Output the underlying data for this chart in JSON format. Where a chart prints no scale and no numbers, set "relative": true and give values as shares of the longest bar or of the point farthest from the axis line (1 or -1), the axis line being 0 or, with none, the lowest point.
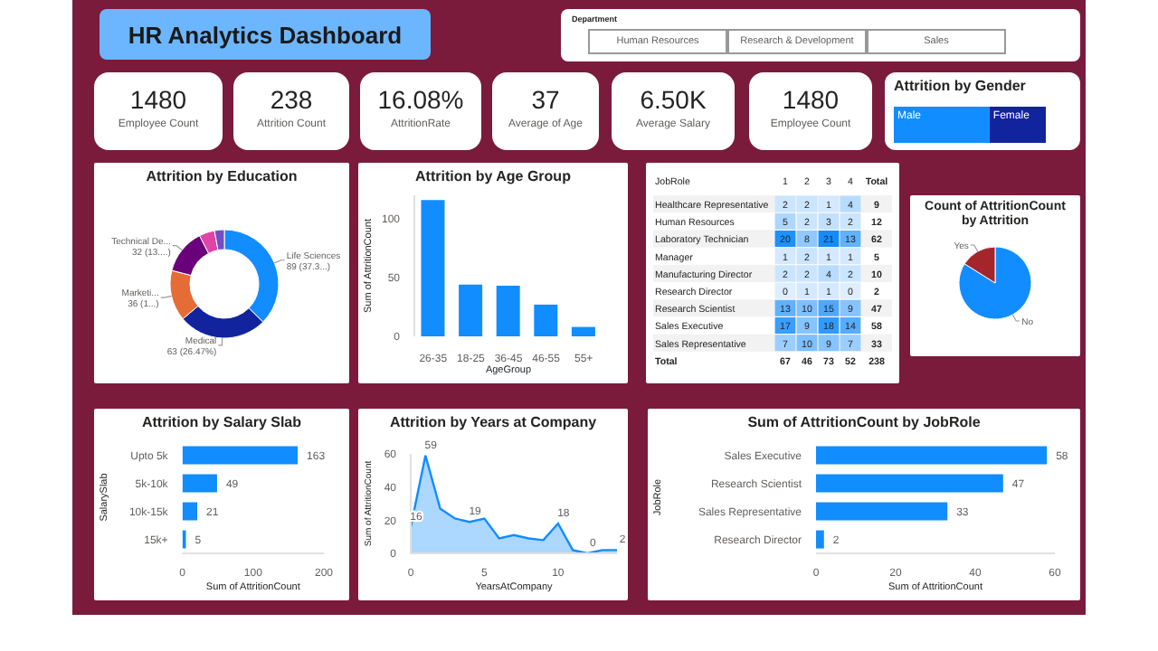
{
  "chart_data": [
    {
      "type": "other",
      "title": "HR Analytics Dashboard",
      "annotations": [
        "Department",
        "Human Resources",
        "Research & Development",
        "Sales",
        "1480",
        "Employee Count",
        "238",
        "Attrition Count",
        "16.08%",
        "AttritionRate",
        "37",
        "Average of Age",
        "6.50K",
        "Average Salary",
        "1480",
        "Employee Count"
      ]
    },
    {
      "type": "bar",
      "title": "Attrition by Gender",
      "orientation": "horizontal",
      "stacked": true,
      "relative": true,
      "categories": [
        null
      ],
      "series": [
        {
          "name": "Male",
          "color": "#118dff",
          "values": [
            0.63
          ]
        },
        {
          "name": "Female",
          "color": "#12239e",
          "values": [
            0.37
          ]
        }
      ]
    },
    {
      "type": "donut",
      "title": "Attrition by Education",
      "categories": [
        "Life Sciences",
        "Medical",
        "Marketi...",
        "Technical De...",
        null,
        null
      ],
      "values": [
        89,
        63,
        36,
        32,
        11,
        7
      ],
      "colors": [
        "#118dff",
        "#12239e",
        "#e66c37",
        "#6b007b",
        "#e044a7",
        "#744ec2"
      ],
      "value_labels": [
        "89 (37.3...)",
        "63 (26.47%)",
        "36 (1...)",
        "32 (13....)",
        null,
        null
      ]
    },
    {
      "type": "bar",
      "title": "Attrition by Age Group",
      "categories": [
        "26-35",
        "18-25",
        "36-45",
        "46-55",
        "55+"
      ],
      "values": [
        116,
        44,
        43,
        27,
        8
      ],
      "color": "#118dff",
      "ylim": [
        0,
        120
      ],
      "yticks": [
        0,
        50,
        100
      ],
      "xlabel": "AgeGroup",
      "ylabel": "Sum of AttritionCount"
    },
    {
      "type": "heatmap",
      "ylabel": "JobRole",
      "data_labels": true,
      "categories": [
        "1",
        "2",
        "3",
        "4",
        "Total"
      ],
      "y_categories": [
        "Healthcare Representative",
        "Human Resources",
        "Laboratory Technician",
        "Manager",
        "Manufacturing Director",
        "Research Director",
        "Research Scientist",
        "Sales Executive",
        "Sales Representative",
        "Total"
      ],
      "cells": [
        [
          2,
          2,
          1,
          4,
          9
        ],
        [
          5,
          2,
          3,
          2,
          12
        ],
        [
          20,
          8,
          21,
          13,
          62
        ],
        [
          1,
          2,
          1,
          1,
          5
        ],
        [
          2,
          2,
          4,
          2,
          10
        ],
        [
          0,
          1,
          1,
          0,
          2
        ],
        [
          13,
          10,
          15,
          9,
          47
        ],
        [
          17,
          9,
          18,
          14,
          58
        ],
        [
          7,
          10,
          9,
          7,
          33
        ],
        [
          67,
          46,
          73,
          52,
          238
        ]
      ]
    },
    {
      "type": "pie",
      "title": "Count of AttritionCount by Attrition",
      "categories": [
        "No",
        "Yes"
      ],
      "values": [
        83.92,
        16.08
      ],
      "colors": [
        "#118dff",
        "#a4262c"
      ]
    },
    {
      "type": "bar",
      "orientation": "horizontal",
      "title": "Attrition by Salary Slab",
      "categories": [
        "Upto 5k",
        "5k-10k",
        "10k-15k",
        "15k+"
      ],
      "values": [
        163,
        49,
        21,
        5
      ],
      "color": "#118dff",
      "xlim": [
        0,
        200
      ],
      "xticks": [
        0,
        100,
        200
      ],
      "xlabel": "Sum of AttritionCount",
      "ylabel": "SalarySlab",
      "data_labels": true
    },
    {
      "type": "area",
      "title": "Attrition by Years at Company",
      "x": [
        0,
        1,
        2,
        3,
        4,
        5,
        6,
        7,
        8,
        9,
        10,
        11,
        12,
        13,
        14
      ],
      "values": [
        16,
        59,
        27,
        21,
        19,
        21,
        9,
        11,
        9,
        8,
        18,
        2,
        0,
        2,
        2
      ],
      "value_labels": [
        "16",
        "59",
        null,
        null,
        "19",
        null,
        null,
        null,
        null,
        null,
        "18",
        null,
        "0",
        null,
        "2"
      ],
      "color": "#118dff",
      "xlim": [
        0,
        14
      ],
      "ylim": [
        0,
        60
      ],
      "xticks": [
        0,
        5,
        10
      ],
      "yticks": [
        0,
        20,
        40,
        60
      ],
      "xlabel": "YearsAtCompany",
      "ylabel": "Sum of AttritionCount"
    },
    {
      "type": "bar",
      "orientation": "horizontal",
      "title": "Sum of AttritionCount by JobRole",
      "categories": [
        "Sales Executive",
        "Research Scientist",
        "Sales Representative",
        "Research Director"
      ],
      "values": [
        58,
        47,
        33,
        2
      ],
      "color": "#118dff",
      "xlim": [
        0,
        60
      ],
      "xticks": [
        0,
        20,
        40,
        60
      ],
      "xlabel": "Sum of AttritionCount",
      "ylabel": "JobRole",
      "data_labels": true
    }
  ]
}
